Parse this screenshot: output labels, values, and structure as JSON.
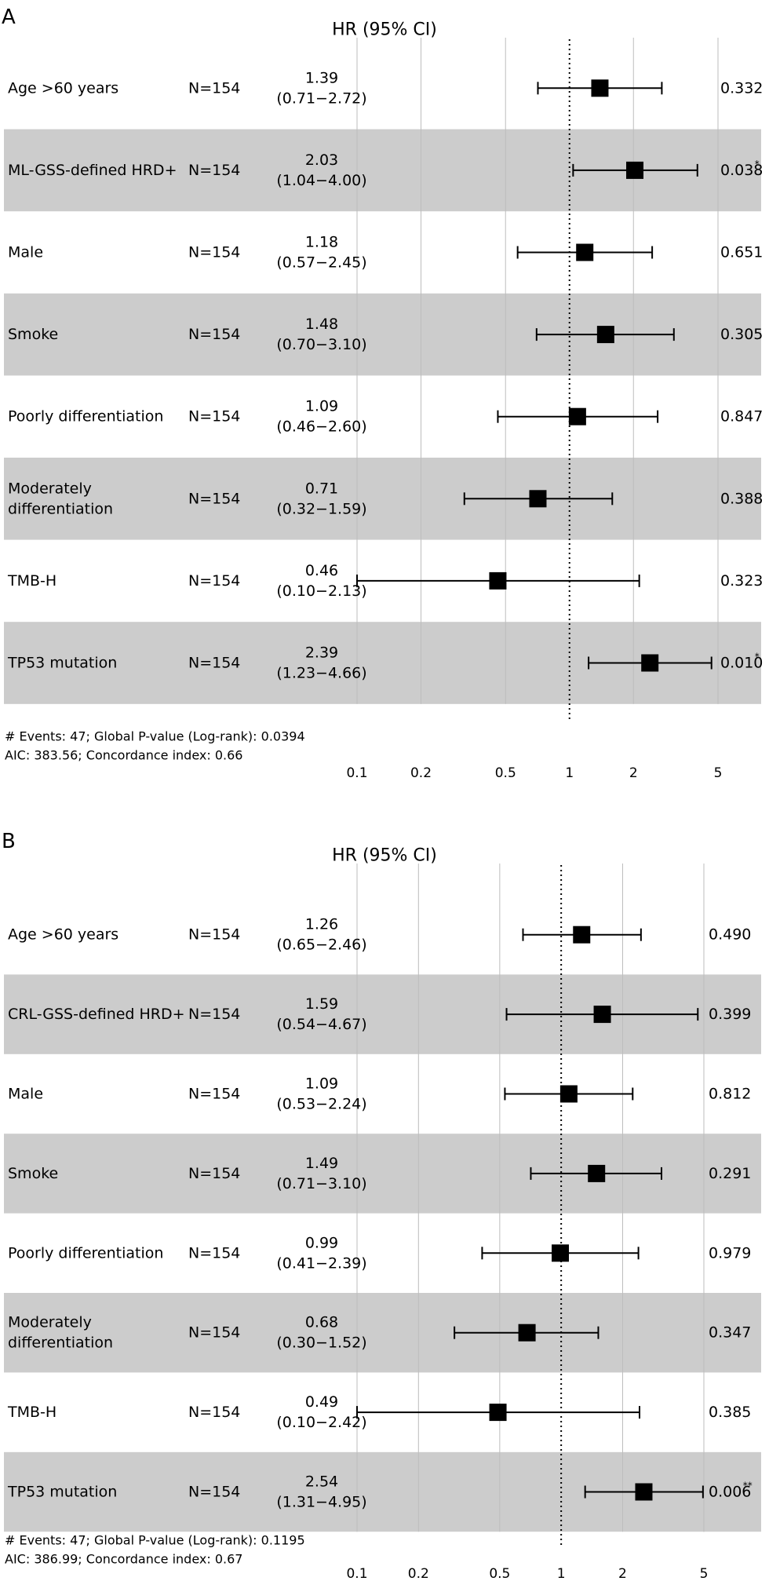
{
  "chart_data": [
    {
      "type": "forest",
      "panel_label": "A",
      "header": "HR (95% CI)",
      "scale": "log",
      "reference_line": 1,
      "xticks": [
        0.1,
        0.2,
        0.5,
        1,
        2,
        5
      ],
      "xtick_labels": [
        "0.1",
        "0.2",
        "0.5",
        "1",
        "2",
        "5"
      ],
      "xlim": [
        0.1,
        5
      ],
      "rows": [
        {
          "label": [
            "Age >60 years"
          ],
          "n": "N=154",
          "hr": 1.39,
          "lo": 0.71,
          "hi": 2.72,
          "hr_text": "1.39",
          "ci_text": "(0.71−2.72)",
          "p": "0.332",
          "sig": "",
          "shaded": false
        },
        {
          "label": [
            "ML-GSS-defined HRD+"
          ],
          "n": "N=154",
          "hr": 2.03,
          "lo": 1.04,
          "hi": 4.0,
          "hr_text": "2.03",
          "ci_text": "(1.04−4.00)",
          "p": "0.038",
          "sig": "*",
          "shaded": true
        },
        {
          "label": [
            "Male"
          ],
          "n": "N=154",
          "hr": 1.18,
          "lo": 0.57,
          "hi": 2.45,
          "hr_text": "1.18",
          "ci_text": "(0.57−2.45)",
          "p": "0.651",
          "sig": "",
          "shaded": false
        },
        {
          "label": [
            "Smoke"
          ],
          "n": "N=154",
          "hr": 1.48,
          "lo": 0.7,
          "hi": 3.1,
          "hr_text": "1.48",
          "ci_text": "(0.70−3.10)",
          "p": "0.305",
          "sig": "",
          "shaded": true
        },
        {
          "label": [
            "Poorly differentiation"
          ],
          "n": "N=154",
          "hr": 1.09,
          "lo": 0.46,
          "hi": 2.6,
          "hr_text": "1.09",
          "ci_text": "(0.46−2.60)",
          "p": "0.847",
          "sig": "",
          "shaded": false
        },
        {
          "label": [
            "Moderately",
            "differentiation"
          ],
          "n": "N=154",
          "hr": 0.71,
          "lo": 0.32,
          "hi": 1.59,
          "hr_text": "0.71",
          "ci_text": "(0.32−1.59)",
          "p": "0.388",
          "sig": "",
          "shaded": true
        },
        {
          "label": [
            "TMB-H"
          ],
          "n": "N=154",
          "hr": 0.46,
          "lo": 0.1,
          "hi": 2.13,
          "hr_text": "0.46",
          "ci_text": "(0.10−2.13)",
          "p": "0.323",
          "sig": "",
          "shaded": false
        },
        {
          "label": [
            "TP53 mutation"
          ],
          "n": "N=154",
          "hr": 2.39,
          "lo": 1.23,
          "hi": 4.66,
          "hr_text": "2.39",
          "ci_text": "(1.23−4.66)",
          "p": "0.010",
          "sig": "*",
          "shaded": true
        }
      ],
      "footer": [
        "# Events: 47; Global P-value (Log-rank): 0.0394",
        "AIC: 383.56; Concordance index: 0.66"
      ]
    },
    {
      "type": "forest",
      "panel_label": "B",
      "header": "HR (95% CI)",
      "scale": "log",
      "reference_line": 1,
      "xticks": [
        0.1,
        0.2,
        0.5,
        1,
        2,
        5
      ],
      "xtick_labels": [
        "0.1",
        "0.2",
        "0.5",
        "1",
        "2",
        "5"
      ],
      "xlim": [
        0.1,
        5
      ],
      "rows": [
        {
          "label": [
            "Age >60 years"
          ],
          "n": "N=154",
          "hr": 1.26,
          "lo": 0.65,
          "hi": 2.46,
          "hr_text": "1.26",
          "ci_text": "(0.65−2.46)",
          "p": "0.490",
          "sig": "",
          "shaded": false
        },
        {
          "label": [
            "CRL-GSS-defined HRD+"
          ],
          "n": "N=154",
          "hr": 1.59,
          "lo": 0.54,
          "hi": 4.67,
          "hr_text": "1.59",
          "ci_text": "(0.54−4.67)",
          "p": "0.399",
          "sig": "",
          "shaded": true
        },
        {
          "label": [
            "Male"
          ],
          "n": "N=154",
          "hr": 1.09,
          "lo": 0.53,
          "hi": 2.24,
          "hr_text": "1.09",
          "ci_text": "(0.53−2.24)",
          "p": "0.812",
          "sig": "",
          "shaded": false
        },
        {
          "label": [
            "Smoke"
          ],
          "n": "N=154",
          "hr": 1.49,
          "lo": 0.71,
          "hi": 3.1,
          "hr_text": "1.49",
          "ci_text": "(0.71−3.10)",
          "p": "0.291",
          "sig": "",
          "shaded": true
        },
        {
          "label": [
            "Poorly differentiation"
          ],
          "n": "N=154",
          "hr": 0.99,
          "lo": 0.41,
          "hi": 2.39,
          "hr_text": "0.99",
          "ci_text": "(0.41−2.39)",
          "p": "0.979",
          "sig": "",
          "shaded": false
        },
        {
          "label": [
            "Moderately",
            "differentiation"
          ],
          "n": "N=154",
          "hr": 0.68,
          "lo": 0.3,
          "hi": 1.52,
          "hr_text": "0.68",
          "ci_text": "(0.30−1.52)",
          "p": "0.347",
          "sig": "",
          "shaded": true
        },
        {
          "label": [
            "TMB-H"
          ],
          "n": "N=154",
          "hr": 0.49,
          "lo": 0.1,
          "hi": 2.42,
          "hr_text": "0.49",
          "ci_text": "(0.10−2.42)",
          "p": "0.385",
          "sig": "",
          "shaded": false
        },
        {
          "label": [
            "TP53 mutation"
          ],
          "n": "N=154",
          "hr": 2.54,
          "lo": 1.31,
          "hi": 4.95,
          "hr_text": "2.54",
          "ci_text": "(1.31−4.95)",
          "p": "0.006",
          "sig": "**",
          "shaded": true
        }
      ],
      "footer": [
        "# Events: 47; Global P-value (Log-rank): 0.1195",
        "AIC: 386.99; Concordance index: 0.67"
      ]
    }
  ]
}
